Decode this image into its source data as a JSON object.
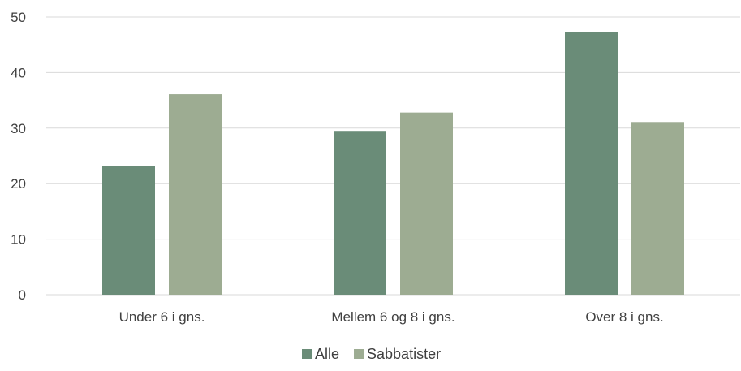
{
  "chart_data": {
    "type": "bar",
    "categories": [
      "Under 6 i gns.",
      "Mellem 6 og 8 i gns.",
      "Over 8 i gns."
    ],
    "series": [
      {
        "name": "Alle",
        "values": [
          23.2,
          29.5,
          47.3
        ],
        "color": "#6a8c78"
      },
      {
        "name": "Sabbatister",
        "values": [
          36.1,
          32.8,
          31.1
        ],
        "color": "#9dac92"
      }
    ],
    "ylim": [
      0,
      50
    ],
    "yticks": [
      0,
      10,
      20,
      30,
      40,
      50
    ],
    "grid": true,
    "legend_position": "bottom"
  }
}
